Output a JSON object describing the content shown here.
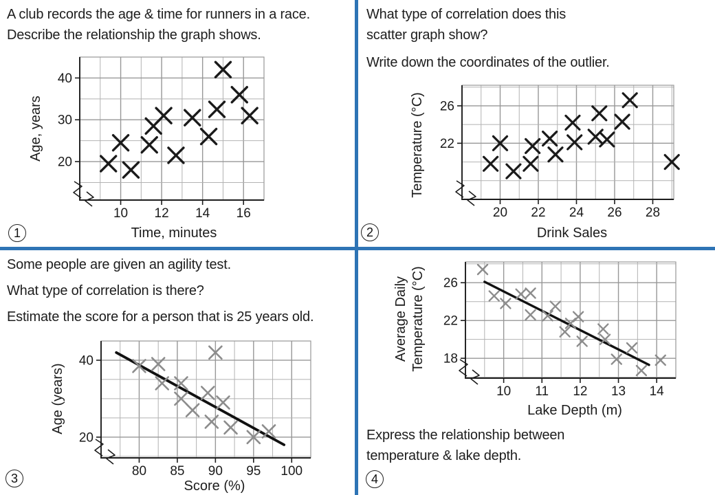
{
  "page": {
    "divider_color": "#2e74b5",
    "background": "#ffffff",
    "text_color": "#1d1d1d",
    "axis_color": "#1c1c1c",
    "grid_minor_color": "#b2b2b2",
    "grid_major_color": "#979797"
  },
  "quadrants": [
    {
      "number": "1",
      "lines": [
        "A club records the age & time for runners in a race.",
        "Describe the relationship the graph shows."
      ]
    },
    {
      "number": "2",
      "lines": [
        "What type of correlation does this",
        "scatter graph show?",
        "Write down the coordinates of the outlier."
      ]
    },
    {
      "number": "3",
      "lines": [
        "Some people are given an agility test.",
        "What type of correlation is there?",
        "Estimate the score for a person that is 25 years old."
      ]
    },
    {
      "number": "4",
      "lines": [
        "Express the relationship between",
        "temperature & lake depth."
      ]
    }
  ],
  "chart_data": [
    {
      "id": "runners-race",
      "type": "scatter",
      "title": "",
      "xlabel": "Time, minutes",
      "ylabel": "Age, years",
      "xlim": [
        8,
        17
      ],
      "ylim": [
        10.8,
        45
      ],
      "x_grid_step": 1,
      "y_grid_step": 5,
      "x_major_ticks": [
        10,
        12,
        14,
        16
      ],
      "y_major_ticks": [
        20,
        30,
        40
      ],
      "axis_break": true,
      "marker": "x",
      "marker_color": "#1a1a1a",
      "points": [
        [
          9.4,
          19.5
        ],
        [
          10,
          24.5
        ],
        [
          10.5,
          18
        ],
        [
          11.4,
          24
        ],
        [
          11.6,
          28.5
        ],
        [
          12.1,
          31
        ],
        [
          12.7,
          21.5
        ],
        [
          13.5,
          30.5
        ],
        [
          14.3,
          26
        ],
        [
          14.7,
          32.5
        ],
        [
          15,
          42
        ],
        [
          15.8,
          36
        ],
        [
          16.3,
          31
        ]
      ]
    },
    {
      "id": "drink-sales",
      "type": "scatter",
      "title": "",
      "xlabel": "Drink Sales",
      "ylabel": "Temperature (°C)",
      "xlim": [
        18,
        29.1
      ],
      "ylim": [
        16,
        28.2
      ],
      "x_grid_step": 1,
      "y_grid_step": 2,
      "x_major_ticks": [
        20,
        22,
        24,
        26,
        28
      ],
      "y_major_ticks": [
        22,
        26
      ],
      "axis_break": true,
      "marker": "x",
      "marker_color": "#1a1a1a",
      "points": [
        [
          19.5,
          19.8
        ],
        [
          20,
          22
        ],
        [
          20.7,
          19
        ],
        [
          21.6,
          19.8
        ],
        [
          21.7,
          21.7
        ],
        [
          22.6,
          22.5
        ],
        [
          22.9,
          20.8
        ],
        [
          23.8,
          24.2
        ],
        [
          23.9,
          22.1
        ],
        [
          25,
          22.7
        ],
        [
          25.2,
          25.2
        ],
        [
          25.6,
          22.4
        ],
        [
          26.4,
          24.3
        ],
        [
          26.8,
          26.6
        ],
        [
          29,
          20
        ]
      ],
      "outlier": [
        29,
        20
      ]
    },
    {
      "id": "agility-test",
      "type": "scatter",
      "title": "",
      "xlabel": "Score (%)",
      "ylabel": "Age (years)",
      "xlim": [
        75,
        102.5
      ],
      "ylim": [
        14.6,
        45
      ],
      "x_grid_step": 2.5,
      "y_grid_step": 5,
      "x_major_ticks": [
        80,
        85,
        90,
        95,
        100
      ],
      "y_major_ticks": [
        20,
        40
      ],
      "axis_break": true,
      "marker": "x",
      "marker_color": "#8c8c8c",
      "trend_line": {
        "from": [
          77,
          42
        ],
        "to": [
          99,
          18
        ],
        "color": "#111111"
      },
      "points": [
        [
          80,
          38.5
        ],
        [
          82.5,
          39
        ],
        [
          83,
          34
        ],
        [
          85.5,
          34
        ],
        [
          85.5,
          30
        ],
        [
          87,
          27
        ],
        [
          89,
          31.5
        ],
        [
          89.5,
          24
        ],
        [
          90,
          42
        ],
        [
          91,
          29
        ],
        [
          92,
          22.5
        ],
        [
          95,
          20
        ],
        [
          97,
          21.5
        ]
      ]
    },
    {
      "id": "lake-depth",
      "type": "scatter",
      "title": "",
      "xlabel": "Lake Depth (m)",
      "ylabel": [
        "Average Daily",
        "Temperature (°C)"
      ],
      "xlim": [
        9,
        14.5
      ],
      "ylim": [
        15.9,
        28.2
      ],
      "x_grid_step": 0.5,
      "y_grid_step": 2,
      "x_major_ticks": [
        10,
        11,
        12,
        13,
        14
      ],
      "y_major_ticks": [
        18,
        22,
        26
      ],
      "axis_break": true,
      "marker": "x",
      "marker_color": "#8c8c8c",
      "trend_line": {
        "from": [
          9.5,
          26.1
        ],
        "to": [
          13.8,
          17.3
        ],
        "color": "#111111"
      },
      "points": [
        [
          9.45,
          27.4
        ],
        [
          9.75,
          24.6
        ],
        [
          10.05,
          23.8
        ],
        [
          10.45,
          24.8
        ],
        [
          10.7,
          24.9
        ],
        [
          10.7,
          22.6
        ],
        [
          11.15,
          22.5
        ],
        [
          11.35,
          23.5
        ],
        [
          11.6,
          20.8
        ],
        [
          11.75,
          21.7
        ],
        [
          11.95,
          22.4
        ],
        [
          12.05,
          19.8
        ],
        [
          12.6,
          21.1
        ],
        [
          12.65,
          20
        ],
        [
          12.95,
          17.9
        ],
        [
          13.35,
          19.1
        ],
        [
          13.6,
          16.7
        ],
        [
          14.1,
          17.8
        ]
      ]
    }
  ]
}
